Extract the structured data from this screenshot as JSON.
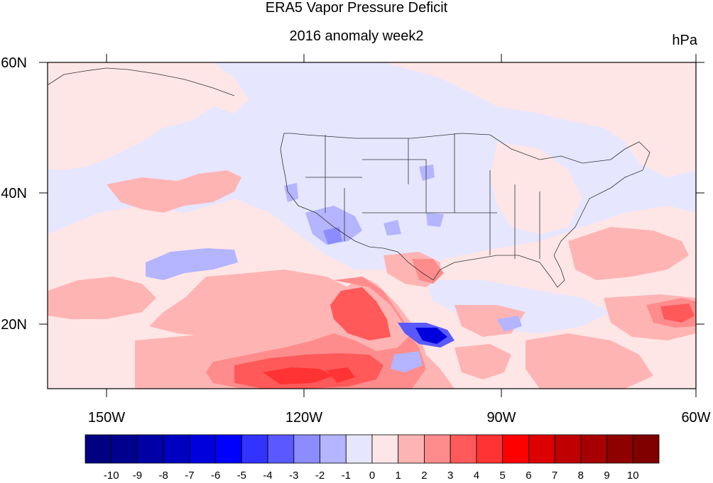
{
  "title": "ERA5 Vapor Pressure Deficit",
  "subtitle": "2016 anomaly week2",
  "units": "hPa",
  "map": {
    "lon_labels": [
      "150W",
      "120W",
      "90W",
      "60W"
    ],
    "lat_labels": [
      "60N",
      "40N",
      "20N"
    ]
  },
  "colorbar": {
    "labels": [
      "-10",
      "-9",
      "-8",
      "-7",
      "-6",
      "-5",
      "-4",
      "-3",
      "-2",
      "-1",
      "0",
      "1",
      "2",
      "3",
      "4",
      "5",
      "6",
      "7",
      "8",
      "9",
      "10"
    ],
    "colors": [
      "#000080",
      "#00008f",
      "#0000a6",
      "#0000c0",
      "#0000dd",
      "#0000ff",
      "#3333ff",
      "#5959ff",
      "#8c8cff",
      "#b4b4ff",
      "#e6e6ff",
      "#ffe6e6",
      "#ffb4b4",
      "#ff8c8c",
      "#ff5959",
      "#ff3333",
      "#ff0000",
      "#dd0000",
      "#c00000",
      "#a60000",
      "#8f0000",
      "#800000"
    ]
  }
}
